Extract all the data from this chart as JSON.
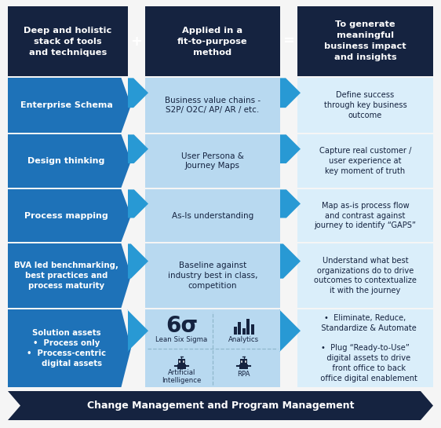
{
  "bg_color": "#f5f5f5",
  "dark_blue": "#152340",
  "medium_blue": "#1e72b8",
  "light_blue": "#b8d9f0",
  "lighter_blue": "#daeefa",
  "arrow_blue": "#2899d4",
  "title_col1": "Deep and holistic\nstack of tools\nand techniques",
  "title_col2": "Applied in a\nfit-to-purpose\nmethod",
  "title_col3": "To generate\nmeaningful\nbusiness impact\nand insights",
  "rows": [
    {
      "col1": "Enterprise Schema",
      "col2": "Business value chains -\nS2P/ O2C/ AP/ AR / etc.",
      "col3": "Define success\nthrough key business\noutcome"
    },
    {
      "col1": "Design thinking",
      "col2": "User Persona &\nJourney Maps",
      "col3": "Capture real customer /\nuser experience at\nkey moment of truth"
    },
    {
      "col1": "Process mapping",
      "col2": "As-Is understanding",
      "col3": "Map as-is process flow\nand contrast against\njourney to identify “GAPS”"
    },
    {
      "col1": "BVA led benchmarking,\nbest practices and\nprocess maturity",
      "col2": "Baseline against\nindustry best in class,\ncompetition",
      "col3": "Understand what best\norganizations do to drive\noutcomes to contextualize\nit with the journey"
    },
    {
      "col1": "Solution assets\n•  Process only\n•  Process-centric\n    digital assets",
      "col2_special": true,
      "col3": "•  Eliminate, Reduce,\n   Standardize & Automate\n\n•  Plug “Ready-to-Use”\n   digital assets to drive\n   front office to back\n   office digital enablement"
    }
  ],
  "bottom_banner": "Change Management and Program Management",
  "sigma_text": "6σ",
  "lean_text": "Lean Six Sigma",
  "analytics_text": "Analytics",
  "ai_text": "Artificial\nIntelligence",
  "rpa_text": "RPA"
}
